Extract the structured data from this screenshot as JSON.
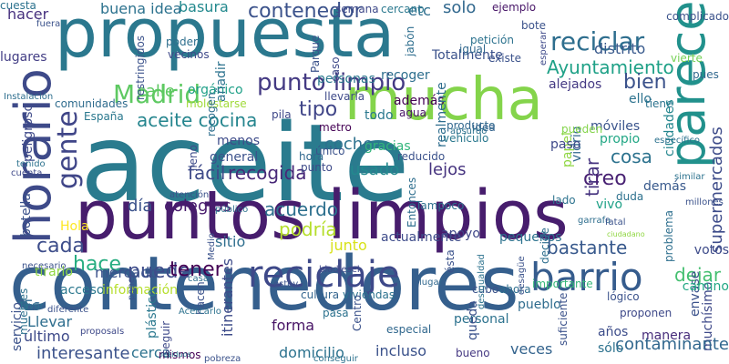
{
  "cloud": {
    "words": [
      {
        "text": "aceite",
        "color": "#2a7b8e"
      },
      {
        "text": "propuesta",
        "color": "#2b788e"
      },
      {
        "text": "puntos limpios",
        "color": "#471d6d"
      },
      {
        "text": "contenedores",
        "color": "#355f8d"
      },
      {
        "text": "mucha",
        "color": "#84d44b"
      },
      {
        "text": "parece",
        "color": "#21918c"
      },
      {
        "text": "horario",
        "color": "#3e4a89"
      },
      {
        "text": "reciclaje",
        "color": "#3e4989"
      },
      {
        "text": "barrio",
        "color": "#365c8d"
      },
      {
        "text": "gente",
        "color": "#404688"
      },
      {
        "text": "Madrid",
        "color": "#5ec962"
      },
      {
        "text": "punto limpio",
        "color": "#443a83"
      },
      {
        "text": "reciclar",
        "color": "#2e6e8e"
      },
      {
        "text": "contenedor",
        "color": "#3b528b"
      },
      {
        "text": "Ayuntamiento",
        "color": "#1fa187"
      },
      {
        "text": "aceite cocina",
        "color": "#25858e"
      },
      {
        "text": "recogida",
        "color": "#482878"
      },
      {
        "text": "cada",
        "color": "#3d4d8a"
      },
      {
        "text": "hace",
        "color": "#27ad81"
      },
      {
        "text": "puede",
        "color": "#3e4c8a"
      },
      {
        "text": "tener",
        "color": "#440154"
      },
      {
        "text": "supermercados",
        "color": "#3e4c8a"
      },
      {
        "text": "podría",
        "color": "#b5de2b"
      },
      {
        "text": "acuerdo",
        "color": "#2d708e"
      },
      {
        "text": "tirar",
        "color": "#46337f"
      },
      {
        "text": "dejar",
        "color": "#44bf70"
      },
      {
        "text": "bastante",
        "color": "#38598c"
      },
      {
        "text": "día",
        "color": "#3b528b"
      },
      {
        "text": "colegios",
        "color": "#481b6d"
      },
      {
        "text": "fácil",
        "color": "#3e4a89"
      },
      {
        "text": "creo",
        "color": "#482173"
      },
      {
        "text": "cosa",
        "color": "#2c728e"
      },
      {
        "text": "tipo",
        "color": "#404588"
      },
      {
        "text": "coche",
        "color": "#2d718e"
      },
      {
        "text": "usado",
        "color": "#23898e"
      },
      {
        "text": "lejos",
        "color": "#46337f"
      },
      {
        "text": "calle",
        "color": "#5ec962"
      },
      {
        "text": "bien",
        "color": "#3b528b"
      },
      {
        "text": "solo",
        "color": "#31688e"
      },
      {
        "text": "distrito",
        "color": "#38598c"
      },
      {
        "text": "basura",
        "color": "#23898e"
      },
      {
        "text": "buena idea",
        "color": "#2c728e"
      },
      {
        "text": "hacer",
        "color": "#46307e"
      },
      {
        "text": "etc",
        "color": "#2e6e8e"
      },
      {
        "text": "semana",
        "color": "#3e4989"
      },
      {
        "text": "cercano",
        "color": "#2a788e"
      },
      {
        "text": "ejemplo",
        "color": "#481668"
      },
      {
        "text": "cuesta",
        "color": "#2c728e"
      },
      {
        "text": "lugares",
        "color": "#433e85"
      },
      {
        "text": "recoger",
        "color": "#2e6f8e"
      },
      {
        "text": "comunidades",
        "color": "#2f6c8e"
      },
      {
        "text": "molestarse",
        "color": "#a0da39"
      },
      {
        "text": "orgánico",
        "color": "#1fa088"
      },
      {
        "text": "Totalmente",
        "color": "#3b528b"
      },
      {
        "text": "alejados",
        "color": "#443983"
      },
      {
        "text": "ello",
        "color": "#2c728e"
      },
      {
        "text": "vierte",
        "color": "#75d054"
      },
      {
        "text": "pues",
        "color": "#31688e"
      },
      {
        "text": "tiene",
        "color": "#2c738e"
      },
      {
        "text": "España",
        "color": "#2a788e"
      },
      {
        "text": "pila",
        "color": "#3f4889"
      },
      {
        "text": "metro",
        "color": "#440154"
      },
      {
        "text": "además",
        "color": "#440154"
      },
      {
        "text": "agua",
        "color": "#471365"
      },
      {
        "text": "llevarla",
        "color": "#3e4a89"
      },
      {
        "text": "vidrio",
        "color": "#31688e"
      },
      {
        "text": "papel",
        "color": "#90d743"
      },
      {
        "text": "propio",
        "color": "#22a785"
      },
      {
        "text": "móviles",
        "color": "#3a548c"
      },
      {
        "text": "ciudades",
        "color": "#24868e"
      },
      {
        "text": "gracias",
        "color": "#31b57b"
      },
      {
        "text": "realmente",
        "color": "#2e6d8e"
      },
      {
        "text": "reducido",
        "color": "#3b528b"
      },
      {
        "text": "hora",
        "color": "#31688e"
      },
      {
        "text": "Tampoco",
        "color": "#2d708e"
      },
      {
        "text": "lado",
        "color": "#2c728e"
      },
      {
        "text": "vivo",
        "color": "#1fa187"
      },
      {
        "text": "duda",
        "color": "#2d718e"
      },
      {
        "text": "demás",
        "color": "#38598c"
      },
      {
        "text": "votos",
        "color": "#3e4c8a"
      },
      {
        "text": "problema",
        "color": "#2e6f8e"
      },
      {
        "text": "envase",
        "color": "#3b528b"
      },
      {
        "text": "muchísimo",
        "color": "#3e4989"
      },
      {
        "text": "camino",
        "color": "#22a884"
      },
      {
        "text": "contaminante",
        "color": "#31678e"
      },
      {
        "text": "manera",
        "color": "#472d7b"
      },
      {
        "text": "años",
        "color": "#3d4d8a"
      },
      {
        "text": "sólo",
        "color": "#2c728e"
      },
      {
        "text": "veces",
        "color": "#33638d"
      },
      {
        "text": "bueno",
        "color": "#453882"
      },
      {
        "text": "incluso",
        "color": "#3b528b"
      },
      {
        "text": "domicilio",
        "color": "#2c728e"
      },
      {
        "text": "forma",
        "color": "#471365"
      },
      {
        "text": "cultura",
        "color": "#32648e"
      },
      {
        "text": "viviendas",
        "color": "#2c728e"
      },
      {
        "text": "cubo",
        "color": "#3b528b"
      },
      {
        "text": "pueblo",
        "color": "#2f6c8e"
      },
      {
        "text": "interesante",
        "color": "#3b528b"
      },
      {
        "text": "cerca",
        "color": "#2c728e"
      },
      {
        "text": "mismos",
        "color": "#440154"
      },
      {
        "text": "itinerantes",
        "color": "#3e4c8a"
      },
      {
        "text": "información",
        "color": "#b5de2b"
      },
      {
        "text": "mercado",
        "color": "#3b528b"
      },
      {
        "text": "acceso",
        "color": "#2a778e"
      },
      {
        "text": "Llevar",
        "color": "#2e6e8e"
      },
      {
        "text": "último",
        "color": "#3e4a89"
      },
      {
        "text": "servicio",
        "color": "#3b528b"
      },
      {
        "text": "Es",
        "color": "#31688e"
      },
      {
        "text": "muebles",
        "color": "#2d718e"
      },
      {
        "text": "tirarlo",
        "color": "#90d743"
      },
      {
        "text": "Hola",
        "color": "#fde725"
      },
      {
        "text": "botella",
        "color": "#3b528b"
      },
      {
        "text": "peligroso",
        "color": "#3e4989"
      },
      {
        "text": "sitio",
        "color": "#2e6e8e"
      },
      {
        "text": "junto",
        "color": "#d8e219"
      },
      {
        "text": "actualmente",
        "color": "#3e4c8a"
      },
      {
        "text": "apoyo",
        "color": "#3f4788"
      },
      {
        "text": "pequeños",
        "color": "#2c728e"
      },
      {
        "text": "menos",
        "color": "#3e4c8a"
      },
      {
        "text": "general",
        "color": "#3b528b"
      },
      {
        "text": "producto",
        "color": "#31688e"
      },
      {
        "text": "vehículo",
        "color": "#2a788e"
      },
      {
        "text": "paso",
        "color": "#3e4989"
      },
      {
        "text": "pueden",
        "color": "#84d44b"
      },
      {
        "text": "todo",
        "color": "#2a788e"
      },
      {
        "text": "idea",
        "color": "#33638d"
      },
      {
        "text": "punto",
        "color": "#3e4a89"
      },
      {
        "text": "único",
        "color": "#3b528b"
      },
      {
        "text": "recogen",
        "color": "#2e6e8e"
      },
      {
        "text": "lleno",
        "color": "#3e4c8a"
      },
      {
        "text": "poder",
        "color": "#2e6f8e"
      },
      {
        "text": "vecinos",
        "color": "#3e4989"
      },
      {
        "text": "restringidos",
        "color": "#3b528b"
      },
      {
        "text": "añadir",
        "color": "#2c728e"
      },
      {
        "text": "Parque",
        "color": "#3b528b"
      },
      {
        "text": "personas",
        "color": "#2a788e"
      },
      {
        "text": "caso",
        "color": "#3e4989"
      },
      {
        "text": "jabón",
        "color": "#2e6e8e"
      },
      {
        "text": "igual",
        "color": "#31688e"
      },
      {
        "text": "existe",
        "color": "#3b528b"
      },
      {
        "text": "petición",
        "color": "#2c728e"
      },
      {
        "text": "bote",
        "color": "#3b528b"
      },
      {
        "text": "complicado",
        "color": "#3b528b"
      },
      {
        "text": "Entonces",
        "color": "#2e6e8e"
      },
      {
        "text": "personal",
        "color": "#2c728e"
      },
      {
        "text": "Centro",
        "color": "#3b528b"
      },
      {
        "text": "especial",
        "color": "#31688e"
      },
      {
        "text": "plástico",
        "color": "#2a788e"
      },
      {
        "text": "seguir",
        "color": "#3e4989"
      },
      {
        "text": "hacen",
        "color": "#3b528b"
      },
      {
        "text": "pasa",
        "color": "#2c728e"
      },
      {
        "text": "queda",
        "color": "#3b528b"
      },
      {
        "text": "ahora",
        "color": "#2e6e8e"
      },
      {
        "text": "importante",
        "color": "#35b779"
      },
      {
        "text": "suficiente",
        "color": "#3b528b"
      },
      {
        "text": "proponen",
        "color": "#3e4989"
      },
      {
        "text": "lógico",
        "color": "#3b528b"
      },
      {
        "text": "diferente",
        "color": "#3b528b"
      },
      {
        "text": "favor",
        "color": "#2c728e"
      },
      {
        "text": "proposals",
        "color": "#3e4989"
      },
      {
        "text": "casa",
        "color": "#2e6e8e"
      },
      {
        "text": "Medio",
        "color": "#3b528b"
      },
      {
        "text": "conseguir",
        "color": "#2c728e"
      },
      {
        "text": "lugar",
        "color": "#31688e"
      },
      {
        "text": "ésta",
        "color": "#3b528b"
      },
      {
        "text": "absurdo",
        "color": "#2c728e"
      },
      {
        "text": "decide",
        "color": "#2e6e8e"
      },
      {
        "text": "esperar",
        "color": "#3e4989"
      },
      {
        "text": "pobreza",
        "color": "#3b528b"
      },
      {
        "text": "Acercarlo",
        "color": "#2c728e"
      },
      {
        "text": "ponen",
        "color": "#3b528b"
      },
      {
        "text": "residuos",
        "color": "#2a788e"
      },
      {
        "text": "ciudadano",
        "color": "#90d743"
      },
      {
        "text": "necesario",
        "color": "#3b528b"
      },
      {
        "text": "cuenta",
        "color": "#3e4989"
      },
      {
        "text": "tenido",
        "color": "#2c728e"
      },
      {
        "text": "fuera",
        "color": "#3b528b"
      },
      {
        "text": "Instalación",
        "color": "#2e6e8e"
      },
      {
        "text": "atención",
        "color": "#3b528b"
      },
      {
        "text": "público",
        "color": "#2c728e"
      },
      {
        "text": "estoy",
        "color": "#3b528b"
      },
      {
        "text": "biodiesel",
        "color": "#3e4989"
      },
      {
        "text": "desigualdad",
        "color": "#2c728e"
      },
      {
        "text": "desagüe",
        "color": "#3b528b"
      },
      {
        "text": "garrafa",
        "color": "#2e6e8e"
      },
      {
        "text": "millones",
        "color": "#3b528b"
      },
      {
        "text": "similar",
        "color": "#2c728e"
      },
      {
        "text": "fatal",
        "color": "#3b528b"
      },
      {
        "text": "específico",
        "color": "#2c728e"
      }
    ]
  }
}
